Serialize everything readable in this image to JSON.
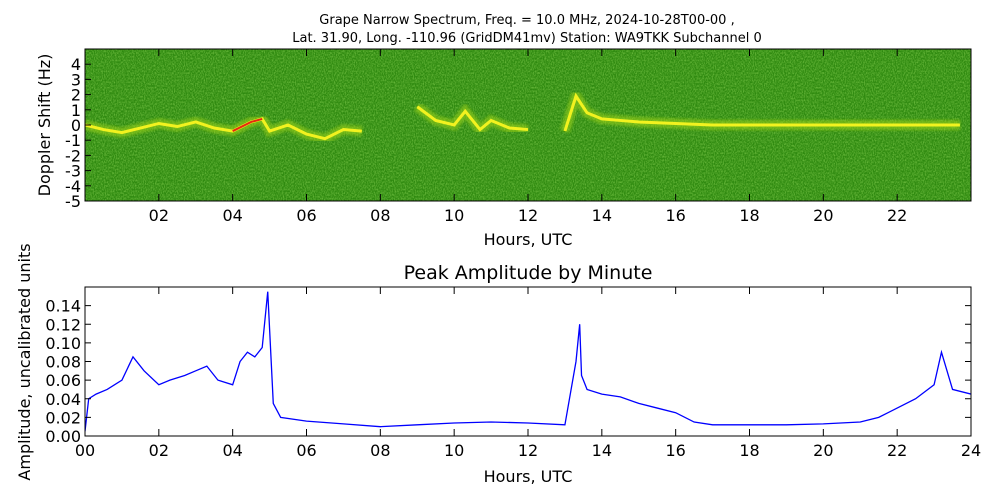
{
  "figure": {
    "title_line1": "Grape Narrow Spectrum, Freq. = 10.0 MHz, 2024-10-28T00-00 ,",
    "title_line2": "Lat.  31.90, Long. -110.96 (GridDM41mv) Station: WA9TKK Subchannel 0"
  },
  "chart_data": [
    {
      "type": "heatmap",
      "title": "",
      "xlabel": "Hours, UTC",
      "ylabel": "Doppler Shift (Hz)",
      "xlim": [
        0,
        24
      ],
      "ylim": [
        -5,
        5
      ],
      "xticks": [
        "02",
        "04",
        "06",
        "08",
        "10",
        "12",
        "14",
        "16",
        "18",
        "20",
        "22"
      ],
      "yticks": [
        "-5",
        "-4",
        "-3",
        "-2",
        "-1",
        "0",
        "1",
        "2",
        "3",
        "4"
      ],
      "colors": {
        "background": "#2f8a10",
        "mid": "#9fd21a",
        "trace": "#f2f21f",
        "peak": "#e62a10"
      },
      "doppler_trace": {
        "x": [
          0,
          0.5,
          1,
          1.5,
          2,
          2.5,
          3,
          3.5,
          4,
          4.5,
          4.8,
          5,
          5.5,
          6,
          6.5,
          7,
          7.5,
          8,
          9,
          9.5,
          10,
          10.3,
          10.7,
          11,
          11.5,
          12,
          12.5,
          13,
          13.3,
          13.6,
          14,
          14.5,
          15,
          16,
          17,
          18,
          19,
          20,
          21,
          22,
          23,
          23.7
        ],
        "y": [
          0,
          -0.3,
          -0.5,
          -0.2,
          0.1,
          -0.1,
          0.2,
          -0.2,
          -0.4,
          0.2,
          0.4,
          -0.4,
          0,
          -0.6,
          -0.9,
          -0.3,
          -0.4,
          null,
          1.2,
          0.3,
          0,
          0.9,
          -0.3,
          0.3,
          -0.2,
          -0.3,
          null,
          -0.4,
          1.9,
          0.8,
          0.4,
          0.3,
          0.2,
          0.1,
          0,
          0,
          0,
          0,
          0,
          0,
          0,
          0
        ]
      }
    },
    {
      "type": "line",
      "title": "Peak Amplitude by Minute",
      "xlabel": "Hours, UTC",
      "ylabel": "Amplitude, uncalibrated units",
      "xlim": [
        0,
        24
      ],
      "ylim": [
        0,
        0.16
      ],
      "xticks": [
        "00",
        "02",
        "04",
        "06",
        "08",
        "10",
        "12",
        "14",
        "16",
        "18",
        "20",
        "22",
        "24"
      ],
      "yticks": [
        "0.00",
        "0.02",
        "0.04",
        "0.06",
        "0.08",
        "0.10",
        "0.12",
        "0.14"
      ],
      "color": "#0000ff",
      "series": [
        {
          "x": [
            0,
            0.1,
            0.3,
            0.6,
            1,
            1.3,
            1.6,
            2,
            2.3,
            2.7,
            3,
            3.3,
            3.6,
            4,
            4.2,
            4.4,
            4.6,
            4.8,
            4.95,
            5.1,
            5.3,
            6,
            7,
            8,
            9,
            10,
            11,
            12,
            13,
            13.3,
            13.4,
            13.45,
            13.6,
            14,
            14.5,
            15,
            15.5,
            16,
            16.5,
            17,
            18,
            19,
            20,
            21,
            21.5,
            22,
            22.5,
            23,
            23.2,
            23.5,
            24
          ],
          "y": [
            0.005,
            0.04,
            0.045,
            0.05,
            0.06,
            0.085,
            0.07,
            0.055,
            0.06,
            0.065,
            0.07,
            0.075,
            0.06,
            0.055,
            0.08,
            0.09,
            0.085,
            0.095,
            0.155,
            0.035,
            0.02,
            0.016,
            0.013,
            0.01,
            0.012,
            0.014,
            0.015,
            0.014,
            0.012,
            0.08,
            0.12,
            0.065,
            0.05,
            0.045,
            0.042,
            0.035,
            0.03,
            0.025,
            0.015,
            0.012,
            0.012,
            0.012,
            0.013,
            0.015,
            0.02,
            0.03,
            0.04,
            0.055,
            0.09,
            0.05,
            0.045
          ]
        }
      ]
    }
  ]
}
